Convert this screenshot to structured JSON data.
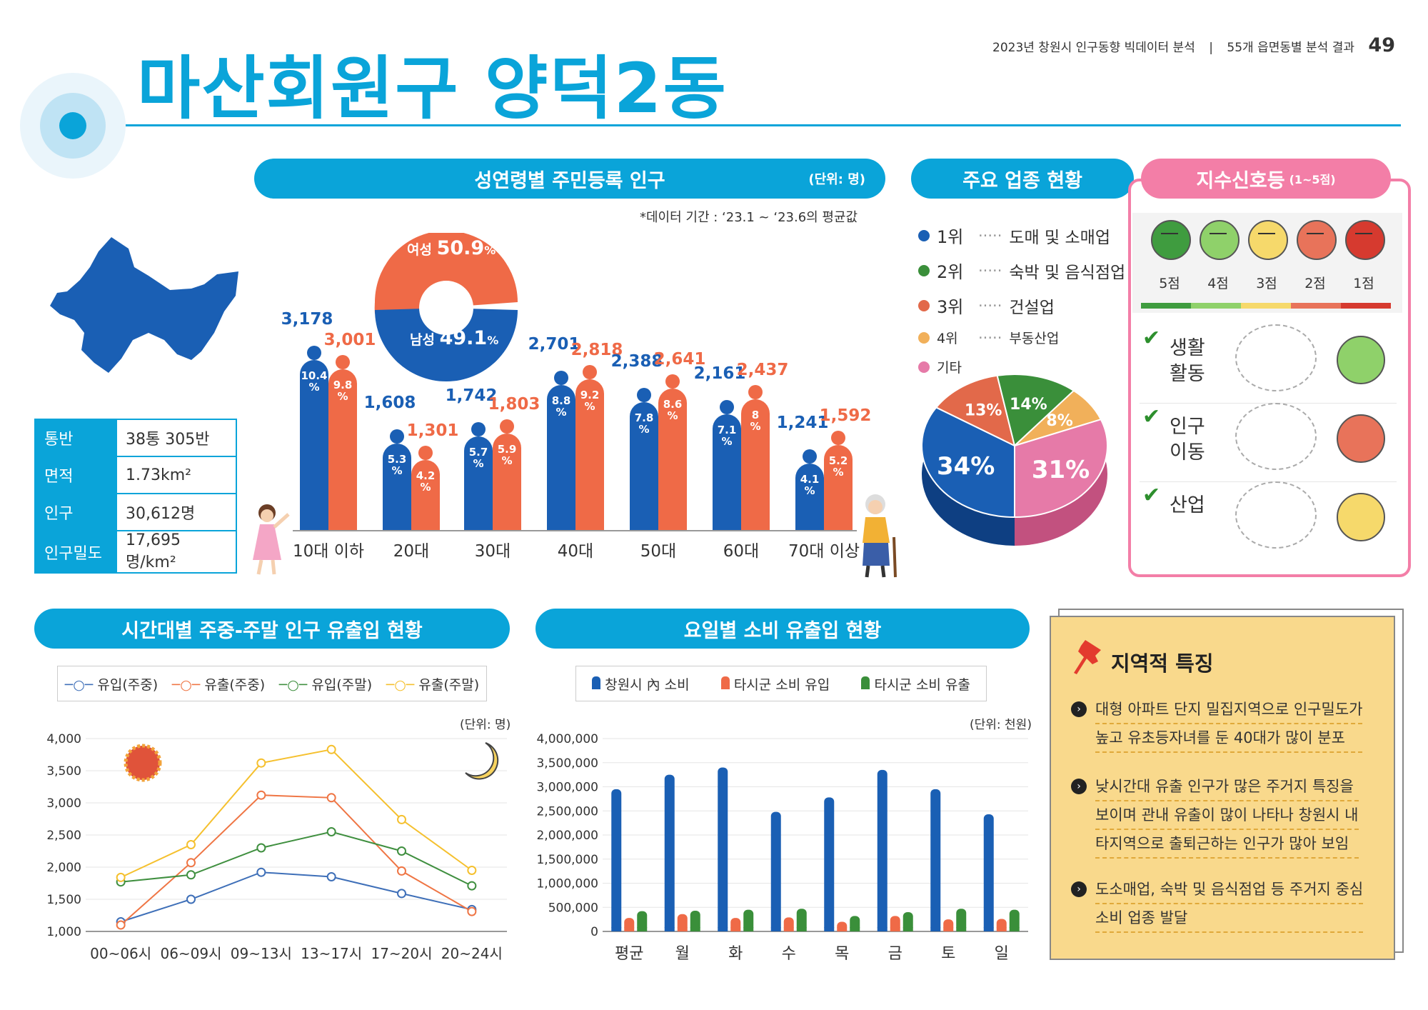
{
  "header": {
    "title": "마산회원구 양덕2동",
    "report_title": "2023년 창원시 인구동향 빅데이터 분석",
    "section": "55개 읍면동별 분석 결과",
    "page_number": "49"
  },
  "info_table": {
    "rows": [
      {
        "label": "통반",
        "value": "38통 305반"
      },
      {
        "label": "면적",
        "value": "1.73km²"
      },
      {
        "label": "인구",
        "value": "30,612명"
      },
      {
        "label": "인구밀도",
        "value": "17,695명/km²"
      }
    ]
  },
  "population_chart": {
    "title": "성연령별 주민등록 인구",
    "unit": "(단위: 명)",
    "period_note": "*데이터 기간 : ‘23.1 ~ ‘23.6의 평균값",
    "gender": {
      "female_label": "여성",
      "female_pct": "50.9",
      "male_label": "남성",
      "male_pct": "49.1",
      "pct_sign": "%"
    },
    "colors": {
      "male": "#1a5fb4",
      "female": "#ef6a47"
    }
  },
  "industry": {
    "title": "주요 업종 현황",
    "legend": [
      {
        "rank": "1위",
        "name": "도매 및 소매업",
        "color": "#1a5fb4"
      },
      {
        "rank": "2위",
        "name": "숙박 및 음식점업",
        "color": "#3a8f3a"
      },
      {
        "rank": "3위",
        "name": "건설업",
        "color": "#e2694a"
      },
      {
        "rank": "4위",
        "name": "부동산업",
        "color": "#f1b05a"
      },
      {
        "rank": "기타",
        "name": "",
        "color": "#e67aa8"
      }
    ],
    "pie_labels": {
      "p1": "34%",
      "p2": "14%",
      "p3": "13%",
      "p4": "8%",
      "p5": "31%"
    }
  },
  "signal": {
    "title": "지수신호등",
    "range": "(1~5점)",
    "scores": [
      "5점",
      "4점",
      "3점",
      "2점",
      "1점"
    ],
    "score_colors": [
      "#3f9c3f",
      "#8fd16a",
      "#f6d96b",
      "#e8735a",
      "#d63a2f"
    ],
    "items": [
      {
        "label1": "생활",
        "label2": "활동",
        "score": 4
      },
      {
        "label1": "인구",
        "label2": "이동",
        "score": 2
      },
      {
        "label1": "산업",
        "label2": "",
        "score": 3
      }
    ]
  },
  "time_flow": {
    "title": "시간대별 주중-주말 인구 유출입 현황",
    "unit": "(단위: 명)",
    "legend": [
      "유입(주중)",
      "유출(주중)",
      "유입(주말)",
      "유출(주말)"
    ],
    "colors": [
      "#3e6fb8",
      "#ef7544",
      "#3f8f3f",
      "#f5c02e"
    ]
  },
  "consumption": {
    "title": "요일별 소비 유출입 현황",
    "unit": "(단위: 천원)",
    "legend": [
      "창원시 內 소비",
      "타시군 소비 유입",
      "타시군 소비 유출"
    ],
    "colors": [
      "#1a5fb4",
      "#ef6a47",
      "#3a8f3a"
    ]
  },
  "regional": {
    "title": "지역적 특징",
    "lines": [
      [
        "대형 아파트 단지 밀집지역으로 인구밀도가",
        "높고 유초등자녀를 둔 40대가 많이 분포"
      ],
      [
        "낮시간대 유출 인구가 많은 주거지 특징을",
        "보이며 관내 유출이 많이 나타나 창원시 내",
        "타지역으로 출퇴근하는 인구가 많아 보임"
      ],
      [
        "도소매업, 숙박 및 음식점업 등 주거지 중심",
        "소비 업종 발달"
      ]
    ]
  },
  "chart_data": [
    {
      "type": "bar",
      "title": "성연령별 주민등록 인구",
      "categories": [
        "10대 이하",
        "20대",
        "30대",
        "40대",
        "50대",
        "60대",
        "70대 이상"
      ],
      "series": [
        {
          "name": "남성",
          "values": [
            3178,
            1608,
            1742,
            2701,
            2388,
            2161,
            1241
          ],
          "pct": [
            "10.4",
            "5.3",
            "5.7",
            "8.8",
            "7.8",
            "7.1",
            "4.1"
          ]
        },
        {
          "name": "여성",
          "values": [
            3001,
            1301,
            1803,
            2818,
            2641,
            2437,
            1592
          ],
          "pct": [
            "9.8",
            "4.2",
            "5.9",
            "9.2",
            "8.6",
            "8",
            "5.2"
          ]
        }
      ]
    },
    {
      "type": "pie",
      "title": "주요 업종 현황",
      "categories": [
        "도매 및 소매업",
        "숙박 및 음식점업",
        "건설업",
        "부동산업",
        "기타"
      ],
      "values": [
        34,
        14,
        13,
        8,
        31
      ]
    },
    {
      "type": "line",
      "title": "시간대별 주중-주말 인구 유출입 현황",
      "categories": [
        "00~06시",
        "06~09시",
        "09~13시",
        "13~17시",
        "17~20시",
        "20~24시"
      ],
      "ylim": [
        1000,
        4000
      ],
      "yticks": [
        "4,000",
        "3,500",
        "3,000",
        "2,500",
        "2,000",
        "1,500",
        "1,000"
      ],
      "series": [
        {
          "name": "유입(주중)",
          "values": [
            1150,
            1500,
            1920,
            1850,
            1590,
            1340
          ]
        },
        {
          "name": "유출(주중)",
          "values": [
            1100,
            2070,
            3120,
            3080,
            1940,
            1310
          ]
        },
        {
          "name": "유입(주말)",
          "values": [
            1770,
            1880,
            2300,
            2550,
            2250,
            1710
          ]
        },
        {
          "name": "유출(주말)",
          "values": [
            1840,
            2350,
            3620,
            3830,
            2740,
            1950
          ]
        }
      ]
    },
    {
      "type": "bar",
      "title": "요일별 소비 유출입 현황",
      "categories": [
        "평균",
        "월",
        "화",
        "수",
        "목",
        "금",
        "토",
        "일"
      ],
      "ylim": [
        0,
        4000000
      ],
      "yticks": [
        "4,000,000",
        "3,500,000",
        "3,000,000",
        "2,500,000",
        "2,000,000",
        "1,500,000",
        "1,000,000",
        "500,000",
        "0"
      ],
      "series": [
        {
          "name": "창원시 內 소비",
          "values": [
            2950000,
            3250000,
            3400000,
            2480000,
            2780000,
            3350000,
            2950000,
            2430000
          ]
        },
        {
          "name": "타시군 소비 유입",
          "values": [
            280000,
            360000,
            280000,
            290000,
            200000,
            320000,
            250000,
            260000
          ]
        },
        {
          "name": "타시군 소비 유출",
          "values": [
            420000,
            430000,
            450000,
            470000,
            320000,
            400000,
            470000,
            450000
          ]
        }
      ]
    }
  ]
}
